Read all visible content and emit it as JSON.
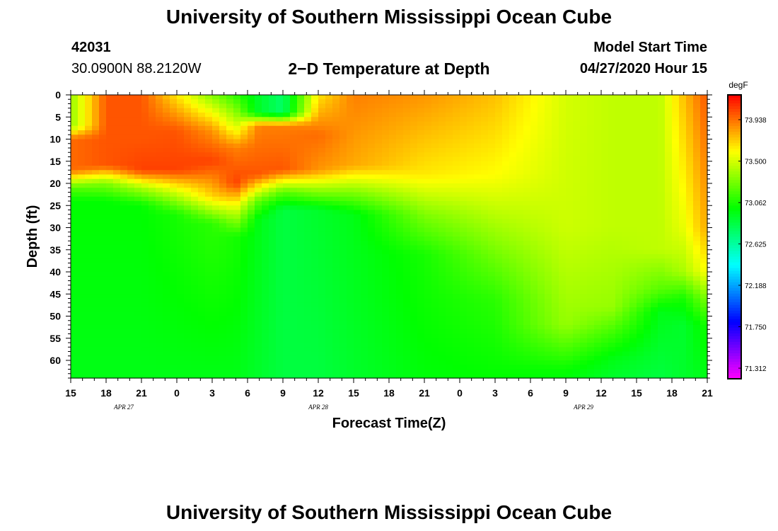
{
  "header": {
    "title": "University of Southern Mississippi Ocean Cube",
    "station_id": "42031",
    "coordinates": "30.0900N 88.2120W",
    "plot_title": "2−D Temperature at Depth",
    "model_start_label": "Model Start Time",
    "model_start_value": "04/27/2020 Hour 15"
  },
  "footer": {
    "title": "University of Southern Mississippi Ocean Cube"
  },
  "chart_data": {
    "type": "heatmap",
    "title": "2−D Temperature at Depth",
    "xlabel": "Forecast Time(Z)",
    "ylabel": "Depth (ft)",
    "x_tick_labels": [
      "15",
      "18",
      "21",
      "0",
      "3",
      "6",
      "9",
      "12",
      "15",
      "18",
      "21",
      "0",
      "3",
      "6",
      "9",
      "12",
      "15",
      "18",
      "21"
    ],
    "x_range_hours": [
      0,
      54
    ],
    "date_labels": [
      {
        "text": "APR 27",
        "hour": 4.5
      },
      {
        "text": "APR 28",
        "hour": 21
      },
      {
        "text": "APR 29",
        "hour": 43.5
      }
    ],
    "y_tick_labels": [
      "0",
      "5",
      "10",
      "15",
      "20",
      "25",
      "30",
      "35",
      "40",
      "45",
      "50",
      "55",
      "60"
    ],
    "ylim": [
      0,
      64
    ],
    "colorbar": {
      "unit": "degF",
      "ticks": [
        "73.938",
        "73.500",
        "73.062",
        "72.625",
        "72.188",
        "71.750",
        "71.312"
      ],
      "range": [
        71.2,
        74.2
      ]
    },
    "temperature_profiles": [
      {
        "hour": 0,
        "depth_knots": [
          [
            0,
            73.35
          ],
          [
            7,
            73.35
          ],
          [
            10,
            73.95
          ],
          [
            17,
            73.95
          ],
          [
            21,
            73.2
          ],
          [
            24,
            73.0
          ],
          [
            64,
            72.95
          ]
        ]
      },
      {
        "hour": 3,
        "depth_knots": [
          [
            0,
            74.0
          ],
          [
            16,
            74.0
          ],
          [
            20,
            73.3
          ],
          [
            24,
            73.0
          ],
          [
            64,
            72.95
          ]
        ]
      },
      {
        "hour": 6,
        "depth_knots": [
          [
            0,
            74.0
          ],
          [
            10,
            74.0
          ],
          [
            17,
            74.05
          ],
          [
            21,
            73.4
          ],
          [
            25,
            73.0
          ],
          [
            64,
            72.95
          ]
        ]
      },
      {
        "hour": 9,
        "depth_knots": [
          [
            0,
            73.65
          ],
          [
            8,
            74.0
          ],
          [
            17,
            74.05
          ],
          [
            22,
            73.5
          ],
          [
            27,
            73.05
          ],
          [
            64,
            72.95
          ]
        ]
      },
      {
        "hour": 12,
        "depth_knots": [
          [
            0,
            73.3
          ],
          [
            8,
            73.85
          ],
          [
            15,
            74.05
          ],
          [
            23,
            73.7
          ],
          [
            29,
            73.1
          ],
          [
            64,
            72.95
          ]
        ]
      },
      {
        "hour": 14,
        "depth_knots": [
          [
            0,
            73.1
          ],
          [
            7,
            73.5
          ],
          [
            12,
            73.9
          ],
          [
            20,
            74.05
          ],
          [
            26,
            73.5
          ],
          [
            32,
            73.05
          ],
          [
            64,
            72.95
          ]
        ]
      },
      {
        "hour": 16,
        "depth_knots": [
          [
            0,
            72.9
          ],
          [
            4,
            72.9
          ],
          [
            7,
            73.9
          ],
          [
            18,
            74.0
          ],
          [
            24,
            73.2
          ],
          [
            28,
            72.95
          ],
          [
            64,
            72.9
          ]
        ]
      },
      {
        "hour": 18,
        "depth_knots": [
          [
            0,
            72.75
          ],
          [
            4,
            72.75
          ],
          [
            7,
            73.9
          ],
          [
            17,
            74.0
          ],
          [
            22,
            73.2
          ],
          [
            26,
            72.85
          ],
          [
            64,
            72.85
          ]
        ]
      },
      {
        "hour": 21,
        "depth_knots": [
          [
            0,
            73.65
          ],
          [
            9,
            73.95
          ],
          [
            17,
            73.85
          ],
          [
            21,
            73.4
          ],
          [
            26,
            72.9
          ],
          [
            64,
            72.85
          ]
        ]
      },
      {
        "hour": 24,
        "depth_knots": [
          [
            0,
            73.9
          ],
          [
            16,
            73.8
          ],
          [
            22,
            73.3
          ],
          [
            27,
            72.95
          ],
          [
            64,
            72.9
          ]
        ]
      },
      {
        "hour": 30,
        "depth_knots": [
          [
            0,
            73.85
          ],
          [
            18,
            73.65
          ],
          [
            27,
            73.3
          ],
          [
            36,
            73.05
          ],
          [
            64,
            72.98
          ]
        ]
      },
      {
        "hour": 36,
        "depth_knots": [
          [
            0,
            73.75
          ],
          [
            18,
            73.6
          ],
          [
            37,
            73.25
          ],
          [
            46,
            73.1
          ],
          [
            64,
            73.0
          ]
        ]
      },
      {
        "hour": 42,
        "depth_knots": [
          [
            0,
            73.5
          ],
          [
            30,
            73.48
          ],
          [
            52,
            73.35
          ],
          [
            58,
            73.15
          ],
          [
            62,
            73.02
          ],
          [
            64,
            72.98
          ]
        ]
      },
      {
        "hour": 46,
        "depth_knots": [
          [
            0,
            73.45
          ],
          [
            30,
            73.45
          ],
          [
            48,
            73.35
          ],
          [
            55,
            73.1
          ],
          [
            60,
            72.95
          ],
          [
            64,
            72.9
          ]
        ]
      },
      {
        "hour": 50,
        "depth_knots": [
          [
            0,
            73.45
          ],
          [
            35,
            73.45
          ],
          [
            44,
            73.2
          ],
          [
            49,
            72.95
          ],
          [
            64,
            72.85
          ]
        ]
      },
      {
        "hour": 52,
        "depth_knots": [
          [
            0,
            73.75
          ],
          [
            30,
            73.55
          ],
          [
            40,
            73.4
          ],
          [
            46,
            73.05
          ],
          [
            52,
            72.9
          ],
          [
            64,
            72.9
          ]
        ]
      },
      {
        "hour": 54,
        "depth_knots": [
          [
            0,
            74.0
          ],
          [
            30,
            73.8
          ],
          [
            40,
            73.6
          ],
          [
            46,
            73.3
          ],
          [
            52,
            73.05
          ],
          [
            64,
            72.95
          ]
        ]
      }
    ]
  }
}
